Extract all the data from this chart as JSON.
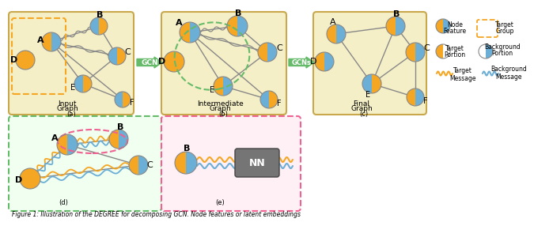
{
  "orange": "#F5A623",
  "blue": "#6BAED6",
  "gray_edge": "#888888",
  "green_arrow": "#66BB6A",
  "green_dashed": "#66BB6A",
  "pink_dashed": "#F06292",
  "orange_dashed": "#F5A623",
  "panel_bg": "#F5EFC7",
  "panel_edge": "#C8A84B",
  "panel_d_bg": "#F0FFF0",
  "panel_e_bg": "#FFF0F5",
  "nn_gray": "#757575",
  "caption": "Figure 1: Illustration of the DEGREE for decomposing GCN. Node features or latent embeddings"
}
